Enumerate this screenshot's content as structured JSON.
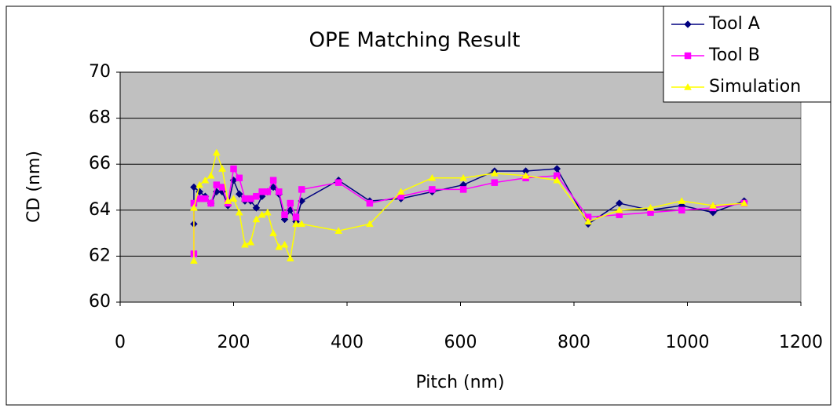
{
  "chart_data": {
    "type": "line",
    "title": "OPE Matching Result",
    "x_label": "Pitch (nm)",
    "y_label": "CD (nm)",
    "x": [
      130,
      130,
      140,
      150,
      160,
      170,
      180,
      190,
      200,
      210,
      220,
      230,
      240,
      250,
      260,
      270,
      280,
      290,
      300,
      310,
      320,
      385,
      440,
      495,
      550,
      605,
      660,
      715,
      770,
      825,
      880,
      935,
      990,
      1045,
      1100
    ],
    "series": [
      {
        "name": "Tool A",
        "color": "#000080",
        "marker": "diamond",
        "values": [
          63.4,
          65.0,
          64.8,
          64.6,
          64.3,
          64.8,
          64.8,
          64.2,
          65.3,
          64.7,
          64.4,
          64.4,
          64.1,
          64.6,
          64.8,
          65.0,
          64.7,
          63.6,
          64.0,
          63.5,
          64.4,
          65.3,
          64.4,
          64.5,
          64.8,
          65.1,
          65.7,
          65.7,
          65.8,
          63.4,
          64.3,
          64.0,
          64.2,
          63.9,
          64.4
        ]
      },
      {
        "name": "Tool B",
        "color": "#ff00ff",
        "marker": "square",
        "values": [
          62.1,
          64.3,
          64.5,
          64.5,
          64.3,
          65.1,
          65.0,
          64.3,
          65.8,
          65.4,
          64.5,
          64.5,
          64.6,
          64.8,
          64.8,
          65.3,
          64.8,
          63.8,
          64.3,
          63.7,
          64.9,
          65.2,
          64.3,
          64.6,
          64.9,
          64.9,
          65.2,
          65.4,
          65.5,
          63.7,
          63.8,
          63.9,
          64.0,
          64.1,
          64.3
        ]
      },
      {
        "name": "Simulation",
        "color": "#ffff00",
        "marker": "triangle",
        "values": [
          61.8,
          64.1,
          65.1,
          65.3,
          65.5,
          66.5,
          65.8,
          64.4,
          64.5,
          63.9,
          62.5,
          62.6,
          63.6,
          63.8,
          63.9,
          63.0,
          62.4,
          62.5,
          61.9,
          63.4,
          63.4,
          63.1,
          63.4,
          64.8,
          65.4,
          65.4,
          65.6,
          65.5,
          65.3,
          63.5,
          64.0,
          64.1,
          64.4,
          64.2,
          64.3
        ]
      }
    ],
    "xlim": [
      0,
      1200
    ],
    "xticks": [
      0,
      200,
      400,
      600,
      800,
      1000,
      1200
    ],
    "ylim": [
      60,
      70
    ],
    "yticks": [
      60,
      62,
      64,
      66,
      68,
      70
    ],
    "grid": true,
    "legend": "top-right",
    "plot_background": "#c0c0c0"
  }
}
